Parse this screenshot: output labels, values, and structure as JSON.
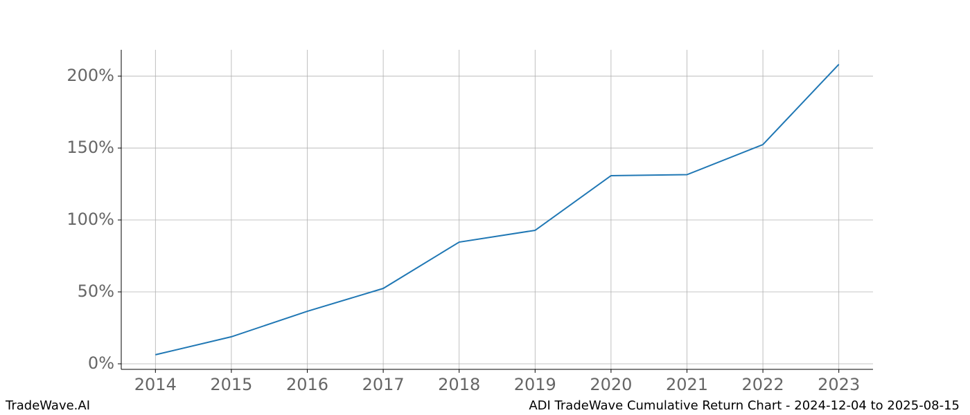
{
  "chart_data": {
    "type": "line",
    "title": "ADI TradeWave Cumulative Return Chart - 2024-12-04 to 2025-08-15",
    "source": "TradeWave.AI",
    "x": [
      2014,
      2015,
      2016,
      2017,
      2018,
      2019,
      2020,
      2021,
      2022,
      2023
    ],
    "series": [
      {
        "color": "#1f77b4",
        "values": [
          6.3,
          18.8,
          36.5,
          52.4,
          84.6,
          92.8,
          130.8,
          131.5,
          152.4,
          208.2
        ]
      }
    ],
    "xlim": [
      2013.55,
      2023.45
    ],
    "xticks": [
      2014,
      2015,
      2016,
      2017,
      2018,
      2019,
      2020,
      2021,
      2022,
      2023
    ],
    "ylim": [
      -3.85,
      218.3
    ],
    "yticks": [
      {
        "value": 0,
        "label": "0%"
      },
      {
        "value": 50,
        "label": "50%"
      },
      {
        "value": 100,
        "label": "100%"
      },
      {
        "value": 150,
        "label": "150%"
      },
      {
        "value": 200,
        "label": "200%"
      }
    ],
    "grid": true
  }
}
